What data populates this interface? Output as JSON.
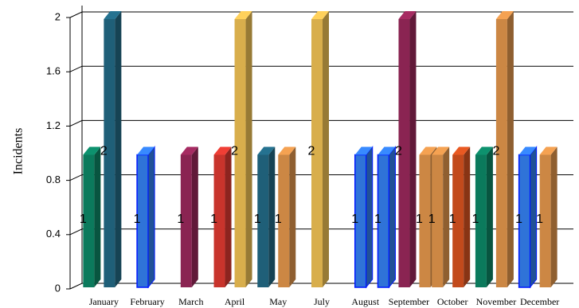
{
  "chart_data": {
    "type": "bar3d",
    "y_label": "Incidents",
    "categories": [
      "January",
      "February",
      "March",
      "April",
      "May",
      "July",
      "August",
      "September",
      "October",
      "November",
      "December"
    ],
    "series": [
      {
        "color": "#0b7a5c",
        "values": [
          1,
          null,
          null,
          null,
          null,
          null,
          null,
          null,
          null,
          1,
          null
        ]
      },
      {
        "color": "#1f5f78",
        "values": [
          2,
          null,
          null,
          null,
          1,
          null,
          null,
          null,
          null,
          null,
          null
        ]
      },
      {
        "color": "#2f73d8",
        "values": [
          null,
          1,
          null,
          null,
          null,
          null,
          1,
          1,
          null,
          null,
          1
        ]
      },
      {
        "color": "#8a2452",
        "values": [
          null,
          null,
          1,
          null,
          null,
          null,
          null,
          2,
          null,
          null,
          null
        ]
      },
      {
        "color": "#c8342c",
        "values": [
          null,
          null,
          null,
          1,
          null,
          null,
          null,
          null,
          null,
          null,
          null
        ]
      },
      {
        "color": "#d8ae4c",
        "values": [
          null,
          null,
          null,
          2,
          null,
          2,
          null,
          null,
          null,
          null,
          null
        ]
      },
      {
        "color": "#cc8744",
        "values": [
          null,
          null,
          null,
          null,
          1,
          null,
          null,
          1,
          1,
          2,
          1
        ]
      },
      {
        "color": "#c24a1c",
        "values": [
          null,
          null,
          null,
          null,
          null,
          null,
          null,
          null,
          1,
          null,
          null
        ]
      }
    ],
    "ylim": [
      0,
      2
    ],
    "yticks": [
      0,
      0.4,
      0.8,
      1.2,
      1.6,
      2
    ],
    "grid": true
  }
}
